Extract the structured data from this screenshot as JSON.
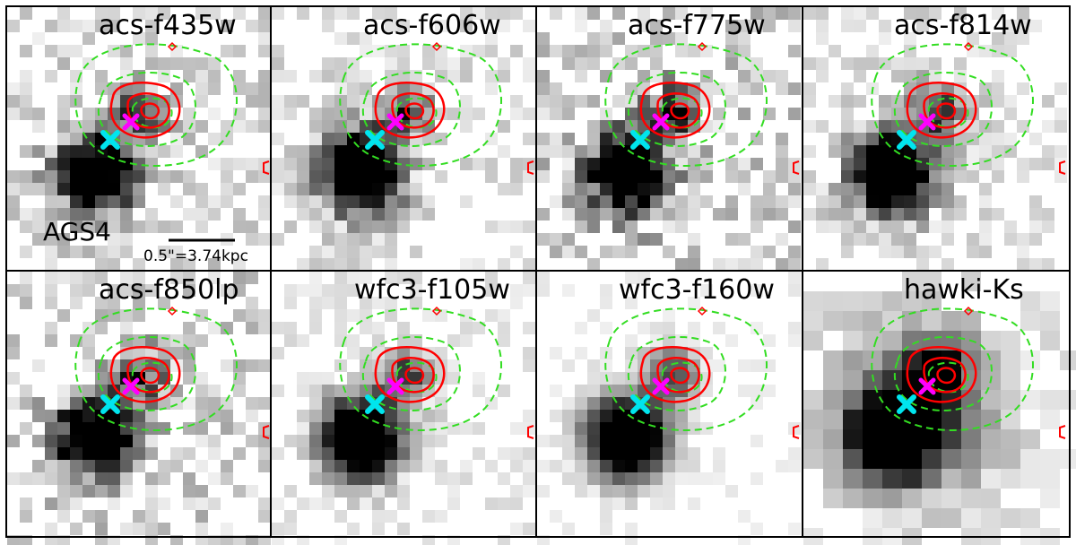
{
  "figure": {
    "object_label": "AGS4",
    "scale_bar_label": "0.5\"=3.74kpc"
  },
  "panels": [
    {
      "filter": "acs-f435w"
    },
    {
      "filter": "acs-f606w"
    },
    {
      "filter": "acs-f775w"
    },
    {
      "filter": "acs-f814w"
    },
    {
      "filter": "acs-f850lp"
    },
    {
      "filter": "wfc3-f105w"
    },
    {
      "filter": "wfc3-f160w"
    },
    {
      "filter": "hawki-Ks"
    }
  ],
  "markers": {
    "magenta_cross_color": "#ff00ff",
    "cyan_cross_color": "#00e5ee"
  },
  "contours": {
    "red_color": "#ff0000",
    "green_dashed_color": "#33dd22"
  }
}
